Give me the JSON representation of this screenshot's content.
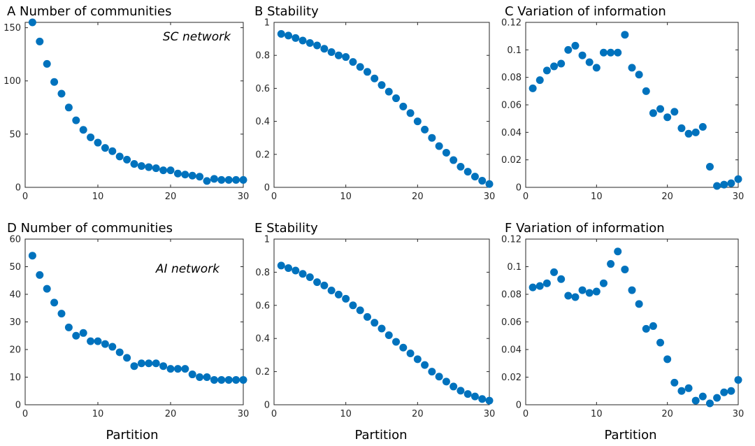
{
  "colors": {
    "marker": "#0072BD",
    "axis": "#262626"
  },
  "chart_data": [
    {
      "type": "scatter",
      "title": "A Number of communities",
      "annotation": "SC network",
      "xlabel": "",
      "ylabel": "",
      "xlim": [
        0,
        30
      ],
      "ylim": [
        0,
        155
      ],
      "xticks": [
        0,
        10,
        20,
        30
      ],
      "yticks": [
        0,
        50,
        100,
        150
      ],
      "grid": false,
      "x": [
        1,
        2,
        3,
        4,
        5,
        6,
        7,
        8,
        9,
        10,
        11,
        12,
        13,
        14,
        15,
        16,
        17,
        18,
        19,
        20,
        21,
        22,
        23,
        24,
        25,
        26,
        27,
        28,
        29,
        30
      ],
      "y": [
        155,
        137,
        116,
        99,
        88,
        75,
        63,
        54,
        47,
        42,
        37,
        34,
        29,
        26,
        22,
        20,
        19,
        18,
        16,
        16,
        13,
        12,
        11,
        10,
        6,
        8,
        7,
        7,
        7,
        7
      ]
    },
    {
      "type": "scatter",
      "title": "B Stability",
      "xlabel": "",
      "ylabel": "",
      "xlim": [
        0,
        30
      ],
      "ylim": [
        0,
        1
      ],
      "xticks": [
        0,
        10,
        20,
        30
      ],
      "yticks": [
        0,
        0.2,
        0.4,
        0.6,
        0.8,
        1
      ],
      "grid": false,
      "x": [
        1,
        2,
        3,
        4,
        5,
        6,
        7,
        8,
        9,
        10,
        11,
        12,
        13,
        14,
        15,
        16,
        17,
        18,
        19,
        20,
        21,
        22,
        23,
        24,
        25,
        26,
        27,
        28,
        29,
        30
      ],
      "y": [
        0.93,
        0.92,
        0.905,
        0.89,
        0.875,
        0.86,
        0.84,
        0.82,
        0.8,
        0.79,
        0.76,
        0.73,
        0.7,
        0.66,
        0.62,
        0.58,
        0.54,
        0.49,
        0.45,
        0.4,
        0.35,
        0.3,
        0.25,
        0.21,
        0.165,
        0.125,
        0.095,
        0.065,
        0.04,
        0.02
      ]
    },
    {
      "type": "scatter",
      "title": "C Variation of information",
      "xlabel": "",
      "ylabel": "",
      "xlim": [
        0,
        30
      ],
      "ylim": [
        0,
        0.12
      ],
      "xticks": [
        0,
        10,
        20,
        30
      ],
      "yticks": [
        0,
        0.02,
        0.04,
        0.06,
        0.08,
        0.1,
        0.12
      ],
      "grid": false,
      "x": [
        1,
        2,
        3,
        4,
        5,
        6,
        7,
        8,
        9,
        10,
        11,
        12,
        13,
        14,
        15,
        16,
        17,
        18,
        19,
        20,
        21,
        22,
        23,
        24,
        25,
        26,
        27,
        28,
        29,
        30
      ],
      "y": [
        0.072,
        0.078,
        0.085,
        0.088,
        0.09,
        0.1,
        0.103,
        0.096,
        0.091,
        0.087,
        0.098,
        0.098,
        0.098,
        0.111,
        0.087,
        0.082,
        0.07,
        0.054,
        0.057,
        0.051,
        0.055,
        0.043,
        0.039,
        0.04,
        0.044,
        0.015,
        0.001,
        0.002,
        0.003,
        0.006
      ]
    },
    {
      "type": "scatter",
      "title": "D Number of communities",
      "annotation": "AI network",
      "xlabel": "Partition",
      "ylabel": "",
      "xlim": [
        0,
        30
      ],
      "ylim": [
        0,
        60
      ],
      "xticks": [
        0,
        10,
        20,
        30
      ],
      "yticks": [
        0,
        10,
        20,
        30,
        40,
        50,
        60
      ],
      "grid": false,
      "x": [
        1,
        2,
        3,
        4,
        5,
        6,
        7,
        8,
        9,
        10,
        11,
        12,
        13,
        14,
        15,
        16,
        17,
        18,
        19,
        20,
        21,
        22,
        23,
        24,
        25,
        26,
        27,
        28,
        29,
        30
      ],
      "y": [
        54,
        47,
        42,
        37,
        33,
        28,
        25,
        26,
        23,
        23,
        22,
        21,
        19,
        17,
        14,
        15,
        15,
        15,
        14,
        13,
        13,
        13,
        11,
        10,
        10,
        9,
        9,
        9,
        9,
        9
      ]
    },
    {
      "type": "scatter",
      "title": "E Stability",
      "xlabel": "Partition",
      "ylabel": "",
      "xlim": [
        0,
        30
      ],
      "ylim": [
        0,
        1
      ],
      "xticks": [
        0,
        10,
        20,
        30
      ],
      "yticks": [
        0,
        0.2,
        0.4,
        0.6,
        0.8,
        1
      ],
      "grid": false,
      "x": [
        1,
        2,
        3,
        4,
        5,
        6,
        7,
        8,
        9,
        10,
        11,
        12,
        13,
        14,
        15,
        16,
        17,
        18,
        19,
        20,
        21,
        22,
        23,
        24,
        25,
        26,
        27,
        28,
        29,
        30
      ],
      "y": [
        0.84,
        0.825,
        0.81,
        0.79,
        0.77,
        0.74,
        0.72,
        0.69,
        0.665,
        0.64,
        0.6,
        0.57,
        0.53,
        0.495,
        0.46,
        0.42,
        0.38,
        0.345,
        0.31,
        0.275,
        0.24,
        0.2,
        0.17,
        0.14,
        0.11,
        0.085,
        0.065,
        0.05,
        0.035,
        0.025
      ]
    },
    {
      "type": "scatter",
      "title": "F Variation of information",
      "xlabel": "Partition",
      "ylabel": "",
      "xlim": [
        0,
        30
      ],
      "ylim": [
        0,
        0.12
      ],
      "xticks": [
        0,
        10,
        20,
        30
      ],
      "yticks": [
        0,
        0.02,
        0.04,
        0.06,
        0.08,
        0.1,
        0.12
      ],
      "grid": false,
      "x": [
        1,
        2,
        3,
        4,
        5,
        6,
        7,
        8,
        9,
        10,
        11,
        12,
        13,
        14,
        15,
        16,
        17,
        18,
        19,
        20,
        21,
        22,
        23,
        24,
        25,
        26,
        27,
        28,
        29,
        30
      ],
      "y": [
        0.085,
        0.086,
        0.088,
        0.096,
        0.091,
        0.079,
        0.078,
        0.083,
        0.081,
        0.082,
        0.088,
        0.102,
        0.111,
        0.098,
        0.083,
        0.073,
        0.055,
        0.057,
        0.045,
        0.033,
        0.016,
        0.01,
        0.012,
        0.003,
        0.006,
        0.001,
        0.005,
        0.009,
        0.01,
        0.018
      ]
    }
  ]
}
